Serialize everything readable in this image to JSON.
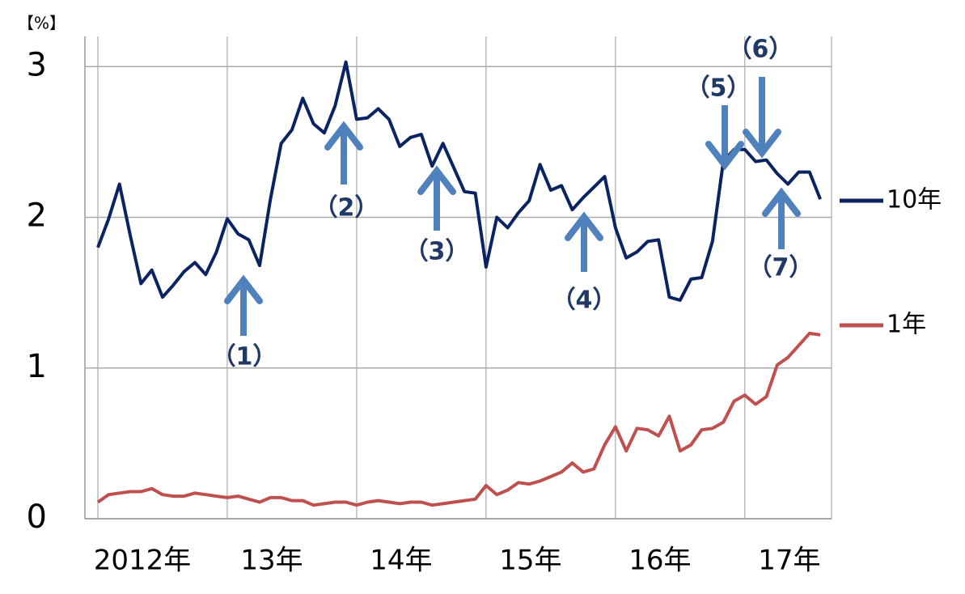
{
  "chart_data": {
    "type": "line",
    "y_unit_label": "【%】",
    "x": [
      2012,
      2012.0833,
      2012.1667,
      2012.25,
      2012.3333,
      2012.4167,
      2012.5,
      2012.5833,
      2012.6667,
      2012.75,
      2012.8333,
      2012.9167,
      2013,
      2013.0833,
      2013.1667,
      2013.25,
      2013.3333,
      2013.4167,
      2013.5,
      2013.5833,
      2013.6667,
      2013.75,
      2013.8333,
      2013.9167,
      2014,
      2014.0833,
      2014.1667,
      2014.25,
      2014.3333,
      2014.4167,
      2014.5,
      2014.5833,
      2014.6667,
      2014.75,
      2014.8333,
      2014.9167,
      2015,
      2015.0833,
      2015.1667,
      2015.25,
      2015.3333,
      2015.4167,
      2015.5,
      2015.5833,
      2015.6667,
      2015.75,
      2015.8333,
      2015.9167,
      2016,
      2016.0833,
      2016.1667,
      2016.25,
      2016.3333,
      2016.4167,
      2016.5,
      2016.5833,
      2016.6667,
      2016.75,
      2016.8333,
      2016.9167,
      2017,
      2017.0833,
      2017.1667,
      2017.25,
      2017.3333,
      2017.4167,
      2017.5,
      2017.5833
    ],
    "series": [
      {
        "name": "10年",
        "color": "#0b2361",
        "values": [
          1.8,
          1.99,
          2.22,
          1.88,
          1.56,
          1.65,
          1.47,
          1.55,
          1.64,
          1.7,
          1.62,
          1.77,
          1.99,
          1.89,
          1.85,
          1.68,
          2.12,
          2.49,
          2.58,
          2.79,
          2.62,
          2.56,
          2.74,
          3.03,
          2.65,
          2.66,
          2.72,
          2.65,
          2.47,
          2.53,
          2.55,
          2.34,
          2.49,
          2.33,
          2.17,
          2.16,
          1.67,
          2.0,
          1.93,
          2.03,
          2.11,
          2.35,
          2.18,
          2.21,
          2.05,
          2.13,
          2.2,
          2.27,
          1.93,
          1.73,
          1.77,
          1.84,
          1.85,
          1.47,
          1.45,
          1.59,
          1.6,
          1.84,
          2.37,
          2.45,
          2.45,
          2.37,
          2.38,
          2.29,
          2.22,
          2.3,
          2.3,
          2.12
        ]
      },
      {
        "name": "1年",
        "color": "#c0504d",
        "values": [
          0.11,
          0.16,
          0.17,
          0.18,
          0.18,
          0.2,
          0.16,
          0.15,
          0.15,
          0.17,
          0.16,
          0.15,
          0.14,
          0.15,
          0.13,
          0.11,
          0.14,
          0.14,
          0.12,
          0.12,
          0.09,
          0.1,
          0.11,
          0.11,
          0.09,
          0.11,
          0.12,
          0.11,
          0.1,
          0.11,
          0.11,
          0.09,
          0.1,
          0.11,
          0.12,
          0.13,
          0.22,
          0.16,
          0.19,
          0.24,
          0.23,
          0.25,
          0.28,
          0.31,
          0.37,
          0.31,
          0.33,
          0.49,
          0.61,
          0.45,
          0.6,
          0.59,
          0.55,
          0.68,
          0.45,
          0.49,
          0.59,
          0.6,
          0.64,
          0.78,
          0.82,
          0.76,
          0.81,
          1.02,
          1.07,
          1.15,
          1.23,
          1.22
        ]
      }
    ],
    "xlim": [
      2011.9,
      2017.67
    ],
    "xticks": [
      {
        "value": 2012,
        "label": "2012年"
      },
      {
        "value": 2013,
        "label": "13年"
      },
      {
        "value": 2014,
        "label": "14年"
      },
      {
        "value": 2015,
        "label": "15年"
      },
      {
        "value": 2016,
        "label": "16年"
      },
      {
        "value": 2017,
        "label": "17年"
      }
    ],
    "ylim": [
      0,
      3.2
    ],
    "yticks": [
      0,
      1,
      2,
      3
    ],
    "grid": true,
    "annotations": [
      "（1）",
      "（2）",
      "（3）",
      "（4）",
      "（5）",
      "（6）",
      "（7）"
    ],
    "annotation_color": "#1f3864",
    "arrow_color": "#4f81bd"
  }
}
